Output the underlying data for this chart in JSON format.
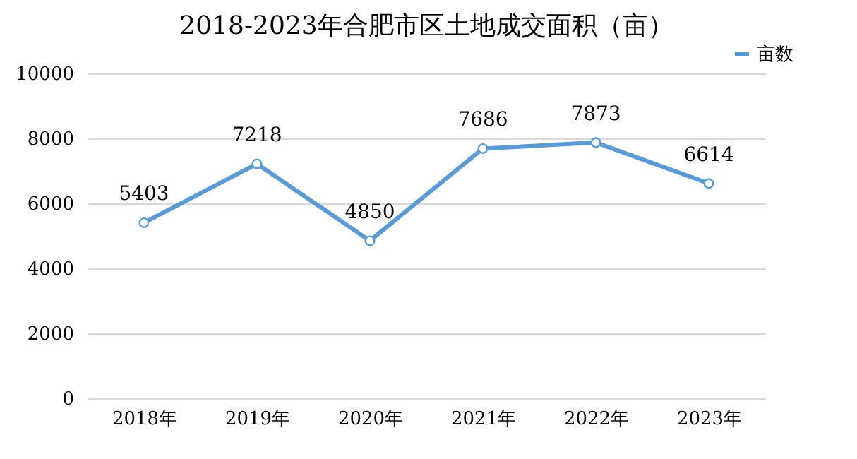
{
  "chart_data": {
    "type": "line",
    "title": "2018-2023年合肥市区土地成交面积（亩）",
    "categories": [
      "2018年",
      "2019年",
      "2020年",
      "2021年",
      "2022年",
      "2023年"
    ],
    "series": [
      {
        "name": "亩数",
        "color": "#5b9bd5",
        "values": [
          5403,
          7218,
          4850,
          7686,
          7873,
          6614
        ]
      }
    ],
    "ylim": [
      0,
      10000
    ],
    "yticks": [
      0,
      2000,
      4000,
      6000,
      8000,
      10000
    ],
    "grid": "y",
    "legend": "top right",
    "marker": "circle",
    "data_labels": true
  }
}
